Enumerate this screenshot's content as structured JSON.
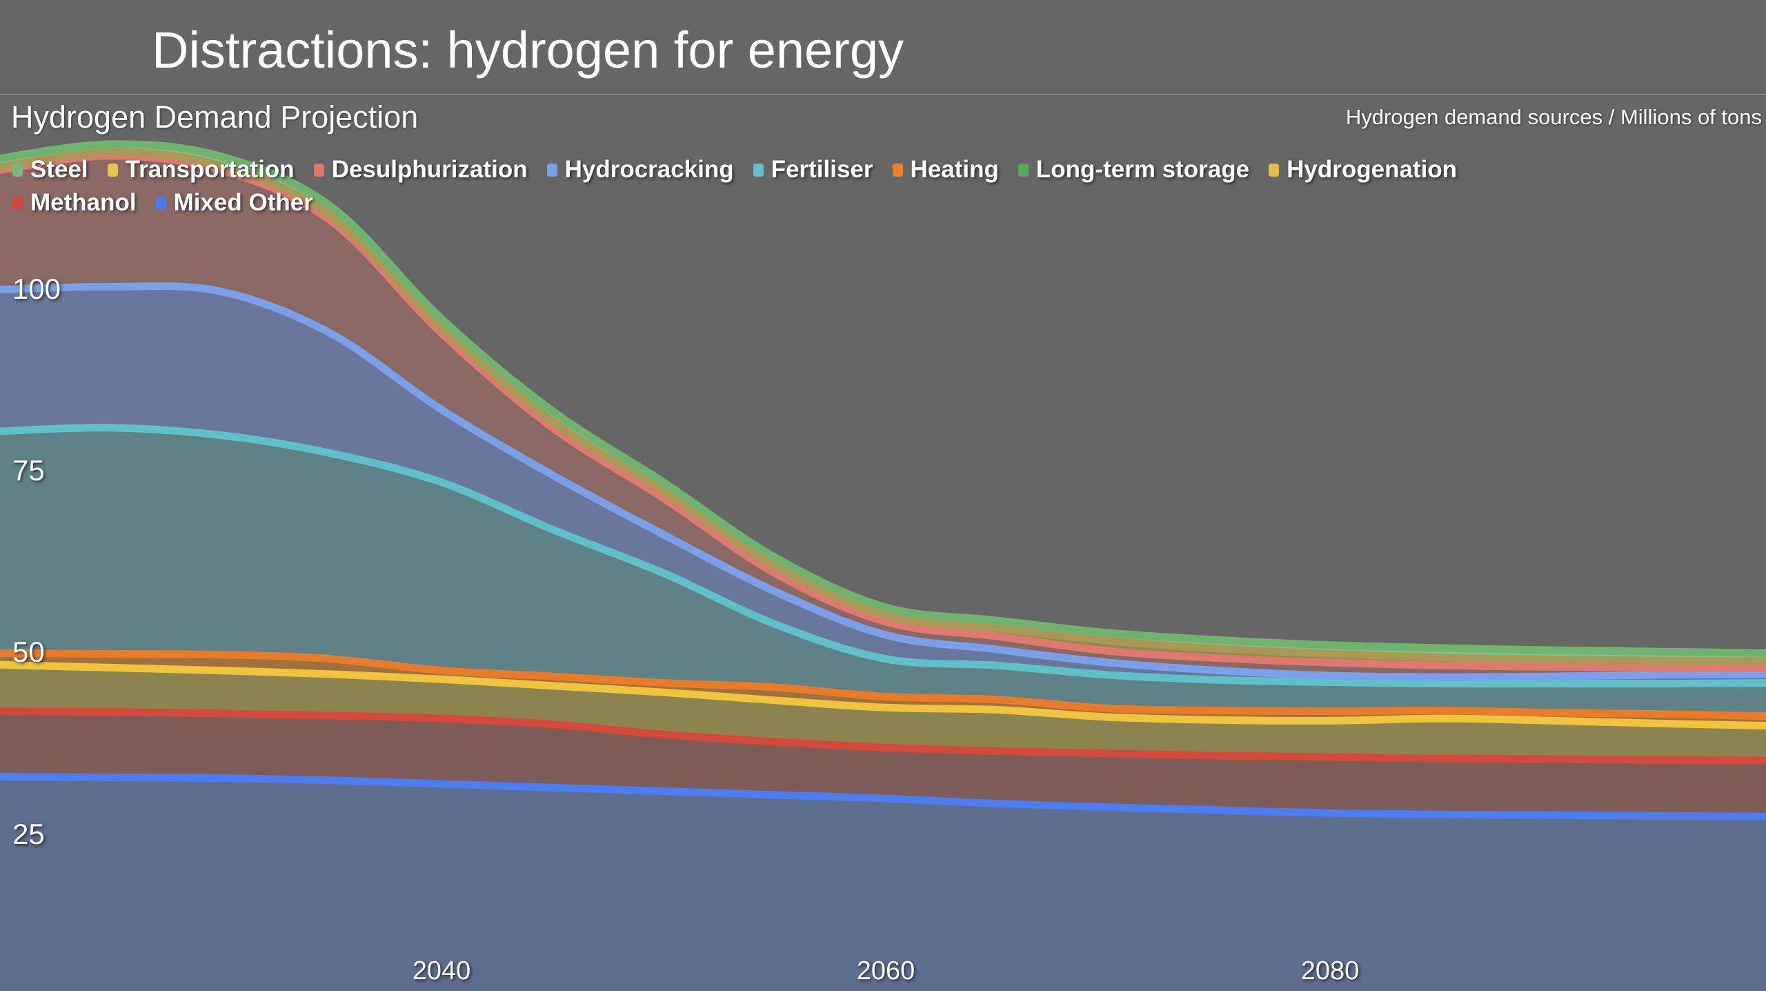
{
  "header": {
    "title": "Distractions: hydrogen for energy"
  },
  "chart_data": {
    "type": "area",
    "stacked": true,
    "title": "Hydrogen Demand Projection",
    "unit_label": "Hydrogen demand sources / Millions of tons",
    "background_color": "#666666",
    "xlabel": "",
    "ylabel": "",
    "x": [
      2020,
      2025,
      2030,
      2035,
      2040,
      2045,
      2050,
      2055,
      2060,
      2065,
      2070,
      2075,
      2080,
      2085,
      2090,
      2095,
      2100
    ],
    "x_ticks": [
      "2040",
      "2060",
      "2080"
    ],
    "y_ticks": [
      "25",
      "50",
      "75",
      "100"
    ],
    "ylim": [
      0,
      125
    ],
    "grid": false,
    "legend_position": "top-left, two rows, overlapping plot",
    "series_note": "listed bottom of stack to top of stack; values in millions of tons",
    "series": [
      {
        "name": "Mixed Other",
        "line_color": "#4C7CF0",
        "fill_color": "#5C6D8E",
        "values": [
          33,
          32.9,
          32.8,
          32.5,
          32,
          31.5,
          31,
          30.5,
          30,
          29.3,
          28.8,
          28.4,
          28,
          27.8,
          27.7,
          27.6,
          27.5
        ]
      },
      {
        "name": "Methanol",
        "line_color": "#D4493A",
        "fill_color": "#7D5B56",
        "values": [
          9,
          9,
          8.9,
          8.9,
          9,
          8.7,
          7.8,
          7.3,
          7,
          7.2,
          7.4,
          7.5,
          7.7,
          7.7,
          7.7,
          7.7,
          7.7
        ]
      },
      {
        "name": "Hydrogenation",
        "line_color": "#F0C43F",
        "fill_color": "#8C8450",
        "values": [
          6.4,
          6.1,
          5.9,
          5.7,
          5.4,
          5.3,
          5.8,
          5.7,
          5.5,
          5.7,
          5,
          4.9,
          5,
          5.5,
          5.3,
          5,
          4.8
        ]
      },
      {
        "name": "Long-term storage",
        "line_color": "#57A85C",
        "fill_color": "#6F8F5E",
        "values": [
          0,
          0,
          0,
          0,
          0,
          0,
          0,
          0,
          0,
          0,
          0,
          0,
          0,
          0,
          0,
          0,
          0
        ]
      },
      {
        "name": "Heating",
        "line_color": "#E87C2B",
        "fill_color": "#A0713F",
        "values": [
          1.6,
          1.9,
          2.2,
          2.1,
          1.2,
          1.3,
          1.3,
          1.8,
          1.5,
          1.4,
          1.2,
          1.3,
          1.3,
          1.1,
          1.1,
          1.3,
          1.3
        ]
      },
      {
        "name": "Fertiliser",
        "line_color": "#5FC0C8",
        "fill_color": "#5F8287",
        "values": [
          30.5,
          31.1,
          30.2,
          28.3,
          25.9,
          20.2,
          15.1,
          8.7,
          5.2,
          4.7,
          4.6,
          4.2,
          4,
          3.7,
          4,
          4.2,
          4.6
        ]
      },
      {
        "name": "Hydrocracking",
        "line_color": "#7C9FE9",
        "fill_color": "#68779B",
        "values": [
          19.5,
          19.4,
          19.8,
          16.5,
          10,
          7.5,
          5.3,
          4.5,
          3.3,
          2.2,
          1.7,
          1.3,
          0.9,
          0.9,
          1,
          1.2,
          1.2
        ]
      },
      {
        "name": "Desulphurization",
        "line_color": "#E0796E",
        "fill_color": "#8A6964",
        "values": [
          16.4,
          18,
          16.7,
          15.5,
          10.5,
          6.5,
          5,
          2.5,
          1.8,
          1.8,
          1.6,
          1.7,
          1.8,
          1.6,
          1.3,
          1,
          0.9
        ]
      },
      {
        "name": "Transportation",
        "line_color": "#A89A55",
        "fill_color": "#918A52",
        "values": [
          0.4,
          0.5,
          0.6,
          0.7,
          0.8,
          0.9,
          1,
          1,
          0.9,
          1.1,
          1.4,
          1.3,
          1.2,
          1.1,
          1,
          0.95,
          0.9
        ]
      },
      {
        "name": "Steel",
        "line_color": "#6FB36F",
        "fill_color": "#84BC8B",
        "values": [
          1.2,
          1.1,
          1.3,
          1.3,
          1.2,
          1.4,
          1.2,
          1.2,
          1.1,
          1.1,
          1.1,
          1.2,
          1.2,
          1.3,
          1.3,
          1.25,
          1.1
        ]
      }
    ],
    "legend_rows": [
      [
        {
          "label": "Steel",
          "color": "#79B77F"
        },
        {
          "label": "Transportation",
          "color": "#E8C44F"
        },
        {
          "label": "Desulphurization",
          "color": "#E0756B"
        },
        {
          "label": "Hydrocracking",
          "color": "#7C9FE9"
        },
        {
          "label": "Fertiliser",
          "color": "#66BFC6"
        },
        {
          "label": "Heating",
          "color": "#E8802E"
        },
        {
          "label": "Long-term storage",
          "color": "#57A85C"
        },
        {
          "label": "Hydrogenation",
          "color": "#E8BE41"
        }
      ],
      [
        {
          "label": "Methanol",
          "color": "#D2473B"
        },
        {
          "label": "Mixed Other",
          "color": "#4C79F0"
        }
      ]
    ]
  }
}
